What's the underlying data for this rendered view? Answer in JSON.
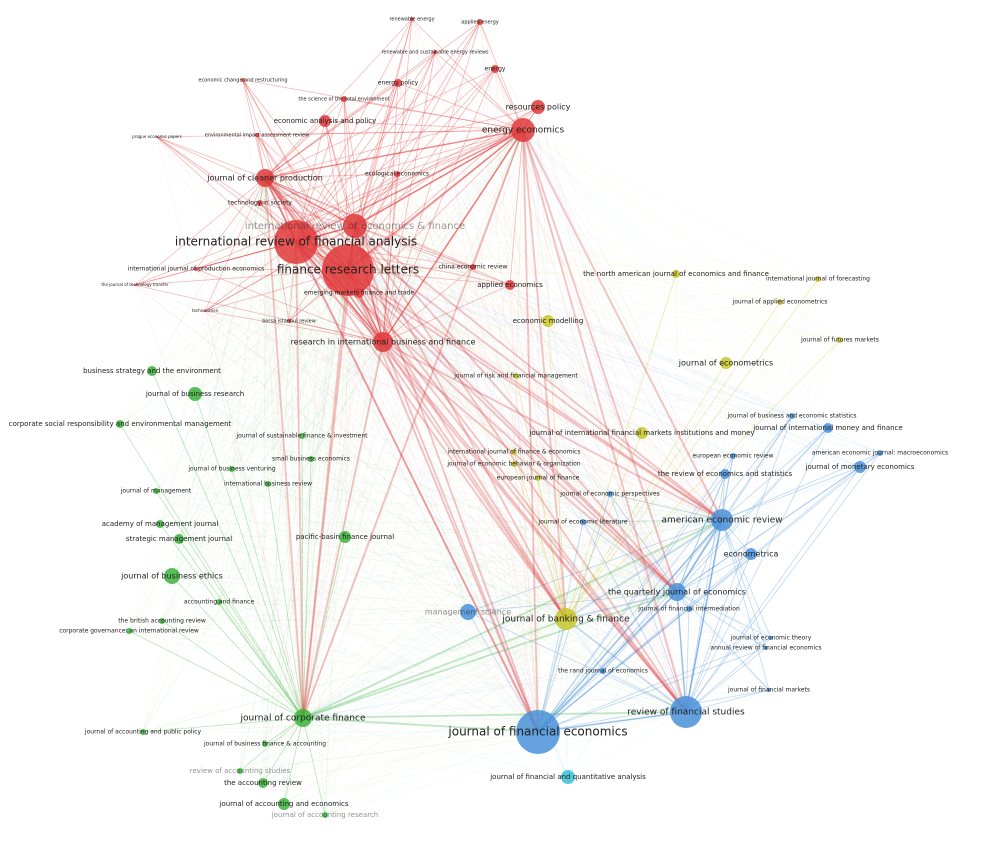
{
  "nodes": [
    {
      "label": "renewable energy",
      "color": "#e0383a"
    },
    {
      "label": "applied energy",
      "color": "#e0383a"
    },
    {
      "label": "renewable and sustainable energy reviews",
      "color": "#e0383a"
    },
    {
      "label": "energy",
      "color": "#e0383a"
    },
    {
      "label": "economic change and restructuring",
      "color": "#e0383a"
    },
    {
      "label": "energy policy",
      "color": "#e0383a"
    },
    {
      "label": "the science of the total environment",
      "color": "#e0383a"
    },
    {
      "label": "resources policy",
      "color": "#e0383a"
    },
    {
      "label": "economic analysis and policy",
      "color": "#e0383a"
    },
    {
      "label": "energy economics",
      "color": "#e0383a"
    },
    {
      "label": "environmental impact assessment review",
      "color": "#e0383a"
    },
    {
      "label": "prague economic papers",
      "color": "#e0383a"
    },
    {
      "label": "journal of cleaner production",
      "color": "#e0383a"
    },
    {
      "label": "ecological economics",
      "color": "#e0383a"
    },
    {
      "label": "technology in society",
      "color": "#e0383a"
    },
    {
      "label": "international review of economics & finance",
      "color": "#e0383a"
    },
    {
      "label": "international review of financial analysis",
      "color": "#e0383a"
    },
    {
      "label": "finance research letters",
      "color": "#e0383a"
    },
    {
      "label": "international journal of production economics",
      "color": "#e0383a"
    },
    {
      "label": "china economic review",
      "color": "#e0383a"
    },
    {
      "label": "applied economics",
      "color": "#e0383a"
    },
    {
      "label": "emerging markets finance and trade",
      "color": "#e0383a"
    },
    {
      "label": "borsa istanbul review",
      "color": "#e0383a"
    },
    {
      "label": "research in international business and finance",
      "color": "#e0383a"
    },
    {
      "label": "the journal of technology transfer",
      "color": "#e0383a"
    },
    {
      "label": "technovation",
      "color": "#e0383a"
    },
    {
      "label": "business strategy and the environment",
      "color": "#3cb33c"
    },
    {
      "label": "journal of business research",
      "color": "#3cb33c"
    },
    {
      "label": "corporate social responsibility and environmental management",
      "color": "#3cb33c"
    },
    {
      "label": "journal of sustainable finance & investment",
      "color": "#3cb33c"
    },
    {
      "label": "small business economics",
      "color": "#3cb33c"
    },
    {
      "label": "journal of business venturing",
      "color": "#3cb33c"
    },
    {
      "label": "international business review",
      "color": "#3cb33c"
    },
    {
      "label": "journal of management",
      "color": "#3cb33c"
    },
    {
      "label": "academy of management journal",
      "color": "#3cb33c"
    },
    {
      "label": "strategic management journal",
      "color": "#3cb33c"
    },
    {
      "label": "pacific-basin finance journal",
      "color": "#3cb33c"
    },
    {
      "label": "journal of business ethics",
      "color": "#3cb33c"
    },
    {
      "label": "accounting and finance",
      "color": "#3cb33c"
    },
    {
      "label": "the british accounting review",
      "color": "#3cb33c"
    },
    {
      "label": "corporate governance: an international review",
      "color": "#3cb33c"
    },
    {
      "label": "journal of corporate finance",
      "color": "#3cb33c"
    },
    {
      "label": "journal of accounting and public policy",
      "color": "#3cb33c"
    },
    {
      "label": "journal of business finance & accounting",
      "color": "#3cb33c"
    },
    {
      "label": "review of accounting studies",
      "color": "#3cb33c"
    },
    {
      "label": "the accounting review",
      "color": "#3cb33c"
    },
    {
      "label": "journal of accounting and economics",
      "color": "#3cb33c"
    },
    {
      "label": "journal of accounting research",
      "color": "#3cb33c"
    },
    {
      "label": "journal of financial economics",
      "color": "#4a90d9"
    },
    {
      "label": "review of financial studies",
      "color": "#4a90d9"
    },
    {
      "label": "american economic review",
      "color": "#4a90d9"
    },
    {
      "label": "econometrica",
      "color": "#4a90d9"
    },
    {
      "label": "the quarterly journal of economics",
      "color": "#4a90d9"
    },
    {
      "label": "journal of financial intermediation",
      "color": "#4a90d9"
    },
    {
      "label": "journal of economic theory",
      "color": "#4a90d9"
    },
    {
      "label": "annual review of financial economics",
      "color": "#4a90d9"
    },
    {
      "label": "journal of financial markets",
      "color": "#4a90d9"
    },
    {
      "label": "journal of monetary economics",
      "color": "#4a90d9"
    },
    {
      "label": "american economic journal: macroeconomics",
      "color": "#4a90d9"
    },
    {
      "label": "journal of international money and finance",
      "color": "#4a90d9"
    },
    {
      "label": "the review of economics and statistics",
      "color": "#4a90d9"
    },
    {
      "label": "journal of business and economic statistics",
      "color": "#4a90d9"
    },
    {
      "label": "journal of economic perspectives",
      "color": "#4a90d9"
    },
    {
      "label": "journal of economic literature",
      "color": "#4a90d9"
    },
    {
      "label": "management science",
      "color": "#4a90d9"
    },
    {
      "label": "the rand journal of economics",
      "color": "#4a90d9"
    },
    {
      "label": "journal of financial and quantitative analysis",
      "color": "#37c0d8"
    },
    {
      "label": "european economic review",
      "color": "#4a90d9"
    },
    {
      "label": "journal of international financial markets institutions and money",
      "color": "#c9c52a"
    },
    {
      "label": "the north american journal of economics and finance",
      "color": "#c9c52a"
    },
    {
      "label": "international journal of forecasting",
      "color": "#c9c52a"
    },
    {
      "label": "journal of applied econometrics",
      "color": "#c9c52a"
    },
    {
      "label": "economic modelling",
      "color": "#c9c52a"
    },
    {
      "label": "journal of econometrics",
      "color": "#c9c52a"
    },
    {
      "label": "journal of futures markets",
      "color": "#c9c52a"
    },
    {
      "label": "journal of banking & finance",
      "color": "#c9c52a"
    },
    {
      "label": "journal of risk and financial management",
      "color": "#c9c52a"
    },
    {
      "label": "international journal of finance & economics",
      "color": "#c9c52a"
    },
    {
      "label": "journal of economic behavior & organization",
      "color": "#c9c52a"
    },
    {
      "label": "european journal of finance",
      "color": "#c9c52a"
    }
  ]
}
